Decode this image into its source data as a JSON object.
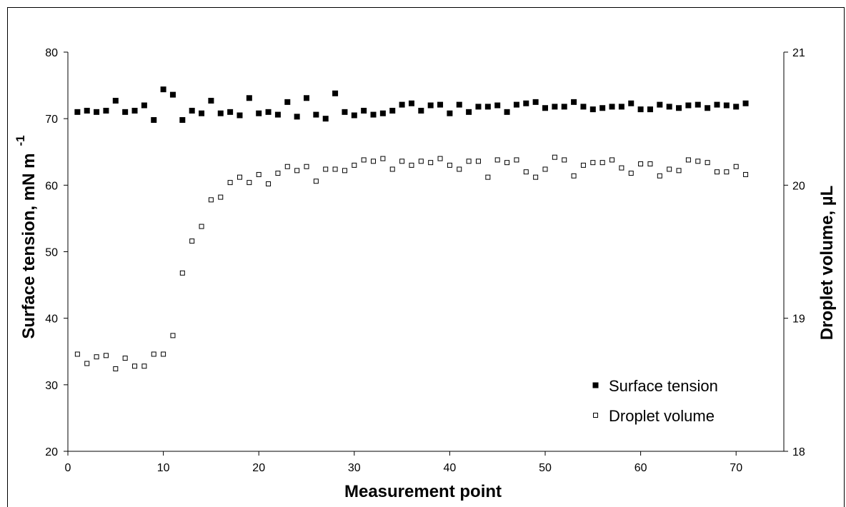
{
  "chart_data": {
    "type": "scatter",
    "xlabel": "Measurement point",
    "ylabel_left": "Surface tension, mN m",
    "ylabel_left_sup": "-1",
    "ylabel_right": "Droplet volume, µL",
    "xlim": [
      0,
      75
    ],
    "ylim_left": [
      20,
      80
    ],
    "ylim_right": [
      18,
      21
    ],
    "x_ticks": [
      0,
      10,
      20,
      30,
      40,
      50,
      60,
      70
    ],
    "y_left_ticks": [
      20,
      30,
      40,
      50,
      60,
      70,
      80
    ],
    "y_right_ticks": [
      18,
      19,
      20,
      21
    ],
    "grid": false,
    "legend_position": "bottom-right",
    "x": [
      1,
      2,
      3,
      4,
      5,
      6,
      7,
      8,
      9,
      10,
      11,
      12,
      13,
      14,
      15,
      16,
      17,
      18,
      19,
      20,
      21,
      22,
      23,
      24,
      25,
      26,
      27,
      28,
      29,
      30,
      31,
      32,
      33,
      34,
      35,
      36,
      37,
      38,
      39,
      40,
      41,
      42,
      43,
      44,
      45,
      46,
      47,
      48,
      49,
      50,
      51,
      52,
      53,
      54,
      55,
      56,
      57,
      58,
      59,
      60,
      61,
      62,
      63,
      64,
      65,
      66,
      67,
      68,
      69,
      70,
      71
    ],
    "series": [
      {
        "name": "Surface tension",
        "axis": "left",
        "marker": "filled-square",
        "color": "#000000",
        "values": [
          71.0,
          71.2,
          71.0,
          71.2,
          72.7,
          71.0,
          71.2,
          72.0,
          69.8,
          74.4,
          73.6,
          69.8,
          71.2,
          70.8,
          72.7,
          70.8,
          71.0,
          70.5,
          73.1,
          70.8,
          71.0,
          70.6,
          72.5,
          70.3,
          73.1,
          70.6,
          70.0,
          73.8,
          71.0,
          70.5,
          71.2,
          70.6,
          70.8,
          71.2,
          72.1,
          72.3,
          71.2,
          72.0,
          72.1,
          70.8,
          72.1,
          71.0,
          71.8,
          71.8,
          72.0,
          71.0,
          72.1,
          72.3,
          72.5,
          71.6,
          71.8,
          71.8,
          72.5,
          71.8,
          71.4,
          71.6,
          71.8,
          71.8,
          72.3,
          71.4,
          71.4,
          72.1,
          71.8,
          71.6,
          72.0,
          72.1,
          71.6,
          72.1,
          72.0,
          71.8,
          72.3
        ]
      },
      {
        "name": "Droplet volume",
        "axis": "right",
        "marker": "open-square",
        "color": "#000000",
        "values": [
          18.73,
          18.66,
          18.71,
          18.72,
          18.62,
          18.7,
          18.64,
          18.64,
          18.73,
          18.73,
          18.87,
          19.34,
          19.58,
          19.69,
          19.89,
          19.91,
          20.02,
          20.06,
          20.02,
          20.08,
          20.01,
          20.09,
          20.14,
          20.11,
          20.14,
          20.03,
          20.12,
          20.12,
          20.11,
          20.15,
          20.19,
          20.18,
          20.2,
          20.12,
          20.18,
          20.15,
          20.18,
          20.17,
          20.2,
          20.15,
          20.12,
          20.18,
          20.18,
          20.06,
          20.19,
          20.17,
          20.19,
          20.1,
          20.06,
          20.12,
          20.21,
          20.19,
          20.07,
          20.15,
          20.17,
          20.17,
          20.19,
          20.13,
          20.09,
          20.16,
          20.16,
          20.07,
          20.12,
          20.11,
          20.19,
          20.18,
          20.17,
          20.1,
          20.1,
          20.14,
          20.08
        ]
      }
    ]
  }
}
